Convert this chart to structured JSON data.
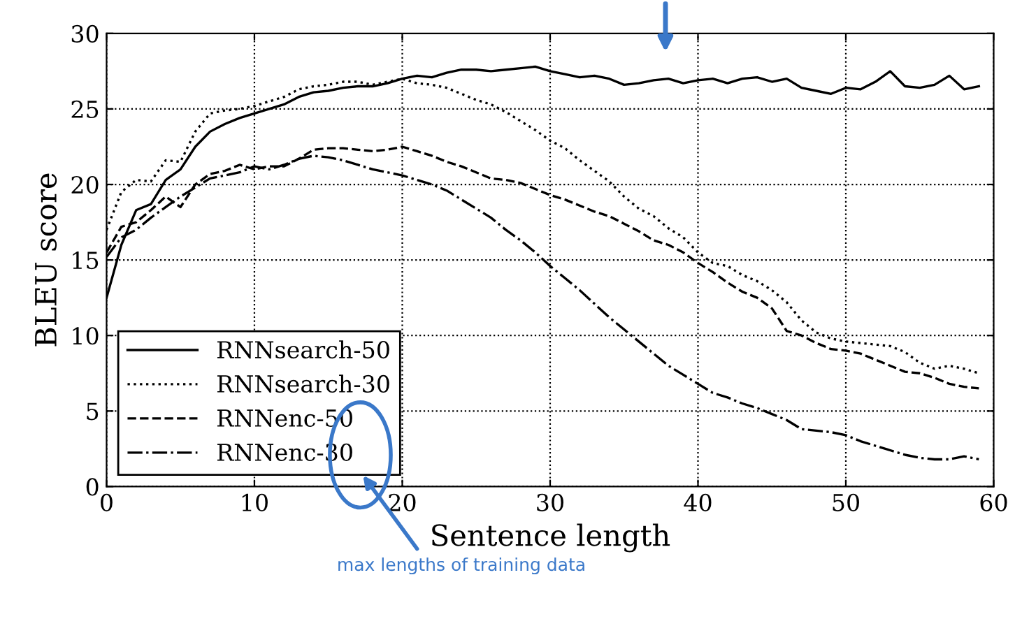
{
  "chart_data": {
    "type": "line",
    "xlabel": "Sentence length",
    "ylabel": "BLEU score",
    "x": [
      0,
      1,
      2,
      3,
      4,
      5,
      6,
      7,
      8,
      9,
      10,
      11,
      12,
      13,
      14,
      15,
      16,
      17,
      18,
      19,
      20,
      21,
      22,
      23,
      24,
      25,
      26,
      27,
      28,
      29,
      30,
      31,
      32,
      33,
      34,
      35,
      36,
      37,
      38,
      39,
      40,
      41,
      42,
      43,
      44,
      45,
      46,
      47,
      48,
      49,
      50,
      51,
      52,
      53,
      54,
      55,
      56,
      57,
      58,
      59
    ],
    "series": [
      {
        "name": "RNNsearch-50",
        "color": "#000000",
        "line_style": "solid",
        "values": [
          12.5,
          16,
          18.3,
          18.7,
          20.3,
          21,
          22.5,
          23.5,
          24,
          24.4,
          24.7,
          25,
          25.3,
          25.8,
          26.1,
          26.2,
          26.4,
          26.5,
          26.5,
          26.7,
          27,
          27.2,
          27.1,
          27.4,
          27.6,
          27.6,
          27.5,
          27.6,
          27.7,
          27.8,
          27.5,
          27.3,
          27.1,
          27.2,
          27,
          26.6,
          26.7,
          26.9,
          27,
          26.7,
          26.9,
          27,
          26.7,
          27,
          27.1,
          26.8,
          27,
          26.4,
          26.2,
          26,
          26.4,
          26.3,
          26.8,
          27.5,
          26.5,
          26.4,
          26.6,
          27.2,
          26.3,
          26.5
        ]
      },
      {
        "name": "RNNsearch-30",
        "color": "#000000",
        "line_style": "dotted",
        "values": [
          17,
          19.5,
          20.3,
          20.2,
          21.6,
          21.5,
          23.5,
          24.7,
          24.9,
          25,
          25.2,
          25.5,
          25.8,
          26.3,
          26.5,
          26.6,
          26.8,
          26.8,
          26.6,
          26.8,
          27,
          26.7,
          26.6,
          26.4,
          26,
          25.6,
          25.3,
          24.8,
          24.2,
          23.6,
          22.9,
          22.4,
          21.6,
          20.9,
          20.2,
          19.2,
          18.4,
          17.9,
          17.1,
          16.5,
          15.5,
          14.8,
          14.6,
          14,
          13.6,
          13,
          12.2,
          11,
          10.2,
          9.8,
          9.6,
          9.5,
          9.4,
          9.3,
          8.9,
          8.2,
          7.8,
          8,
          7.8,
          7.5
        ]
      },
      {
        "name": "RNNenc-50",
        "color": "#000000",
        "line_style": "dashed",
        "values": [
          15.5,
          17.2,
          17.5,
          18.3,
          19.2,
          18.5,
          20,
          20.7,
          20.9,
          21.3,
          21,
          21.2,
          21.2,
          21.7,
          22.3,
          22.4,
          22.4,
          22.3,
          22.2,
          22.3,
          22.5,
          22.2,
          21.9,
          21.5,
          21.2,
          20.8,
          20.4,
          20.3,
          20.1,
          19.7,
          19.3,
          19,
          18.6,
          18.2,
          17.9,
          17.4,
          16.9,
          16.3,
          16,
          15.5,
          14.8,
          14.2,
          13.5,
          12.9,
          12.5,
          11.8,
          10.3,
          10,
          9.5,
          9.1,
          9,
          8.8,
          8.4,
          8,
          7.6,
          7.5,
          7.2,
          6.8,
          6.6,
          6.5
        ]
      },
      {
        "name": "RNNenc-30",
        "color": "#000000",
        "line_style": "dashdot",
        "values": [
          15.2,
          16.5,
          17,
          17.8,
          18.5,
          19.2,
          19.8,
          20.4,
          20.6,
          20.8,
          21.2,
          21,
          21.3,
          21.7,
          21.9,
          21.8,
          21.6,
          21.3,
          21,
          20.8,
          20.6,
          20.3,
          20,
          19.6,
          19,
          18.4,
          17.8,
          17,
          16.3,
          15.5,
          14.6,
          13.8,
          13,
          12.1,
          11.2,
          10.4,
          9.6,
          8.8,
          8,
          7.4,
          6.8,
          6.2,
          5.9,
          5.5,
          5.2,
          4.8,
          4.4,
          3.8,
          3.7,
          3.6,
          3.4,
          3,
          2.7,
          2.4,
          2.1,
          1.9,
          1.8,
          1.8,
          2,
          1.8
        ]
      }
    ],
    "xlim": [
      0,
      60
    ],
    "ylim": [
      0,
      30
    ],
    "xticks": [
      0,
      10,
      20,
      30,
      40,
      50,
      60
    ],
    "yticks": [
      0,
      5,
      10,
      15,
      20,
      25,
      30
    ],
    "grid": true,
    "legend": "bottom left",
    "annotations": [
      "max lengths of training data"
    ]
  }
}
